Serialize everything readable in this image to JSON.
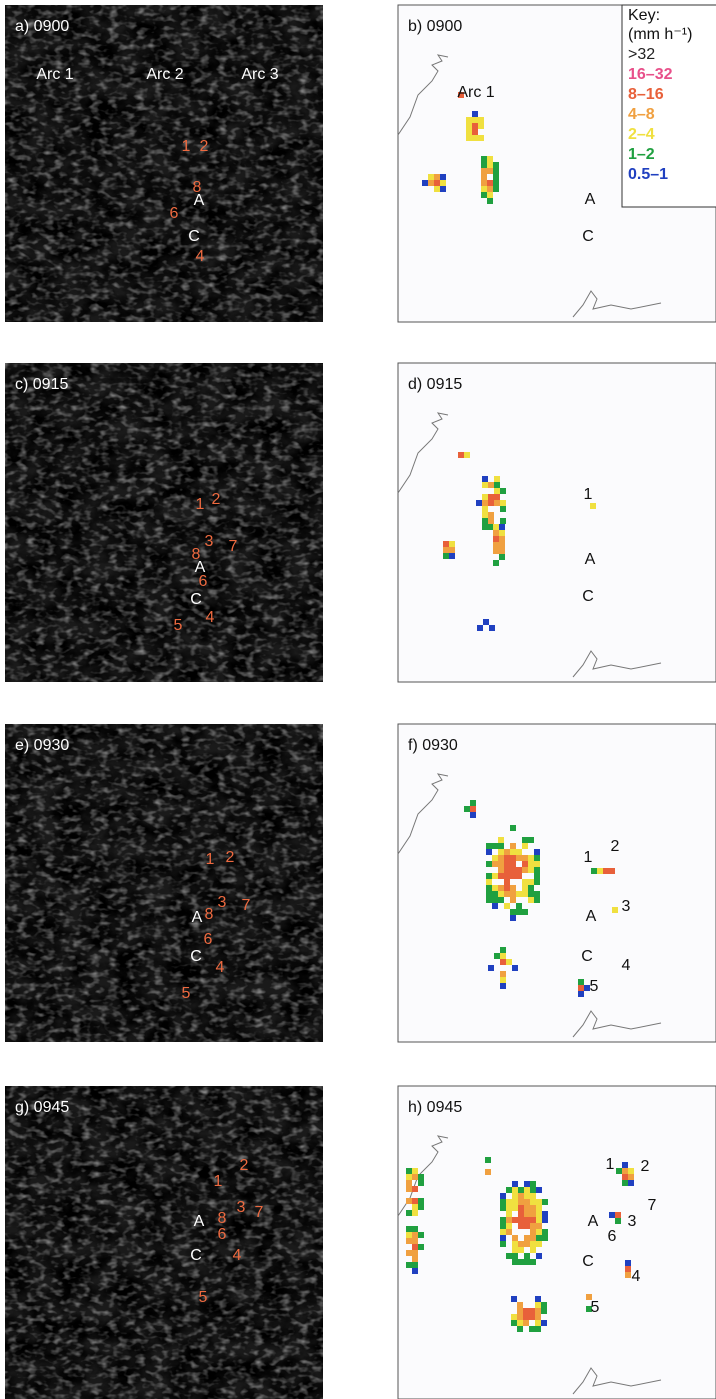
{
  "panels": [
    {
      "label": "a) 0900",
      "annotations": [
        "Arc 1",
        "Arc 2",
        "Arc 3",
        "1",
        "2",
        "8",
        "A",
        "6",
        "C",
        "4"
      ]
    },
    {
      "label": "b) 0900",
      "annotations": [
        "Arc 1",
        "A",
        "C"
      ]
    },
    {
      "label": "c) 0915",
      "annotations": [
        "1",
        "2",
        "3",
        "7",
        "8",
        "A",
        "6",
        "C",
        "5",
        "4"
      ]
    },
    {
      "label": "d) 0915",
      "annotations": [
        "1",
        "A",
        "C"
      ]
    },
    {
      "label": "e) 0930",
      "annotations": [
        "1",
        "2",
        "3",
        "7",
        "8",
        "A",
        "6",
        "C",
        "4",
        "5"
      ]
    },
    {
      "label": "f) 0930",
      "annotations": [
        "1",
        "2",
        "3",
        "A",
        "C",
        "4",
        "5"
      ]
    },
    {
      "label": "g) 0945",
      "annotations": [
        "2",
        "1",
        "3",
        "7",
        "8",
        "A",
        "6",
        "C",
        "4",
        "5"
      ]
    },
    {
      "label": "h) 0945",
      "annotations": [
        "1",
        "2",
        "7",
        "3",
        "A",
        "6",
        "C",
        "4",
        "5"
      ]
    }
  ],
  "key": {
    "title": "Key:",
    "unit": "(mm h⁻¹)",
    "items": [
      {
        "label": ">32",
        "color": "#222222"
      },
      {
        "label": "16–32",
        "color": "#e8508a"
      },
      {
        "label": "8–16",
        "color": "#e8603a"
      },
      {
        "label": "4–8",
        "color": "#f0a040"
      },
      {
        "label": "2–4",
        "color": "#f0e040"
      },
      {
        "label": "1–2",
        "color": "#20a040"
      },
      {
        "label": "0.5–1",
        "color": "#2040c0"
      }
    ]
  }
}
